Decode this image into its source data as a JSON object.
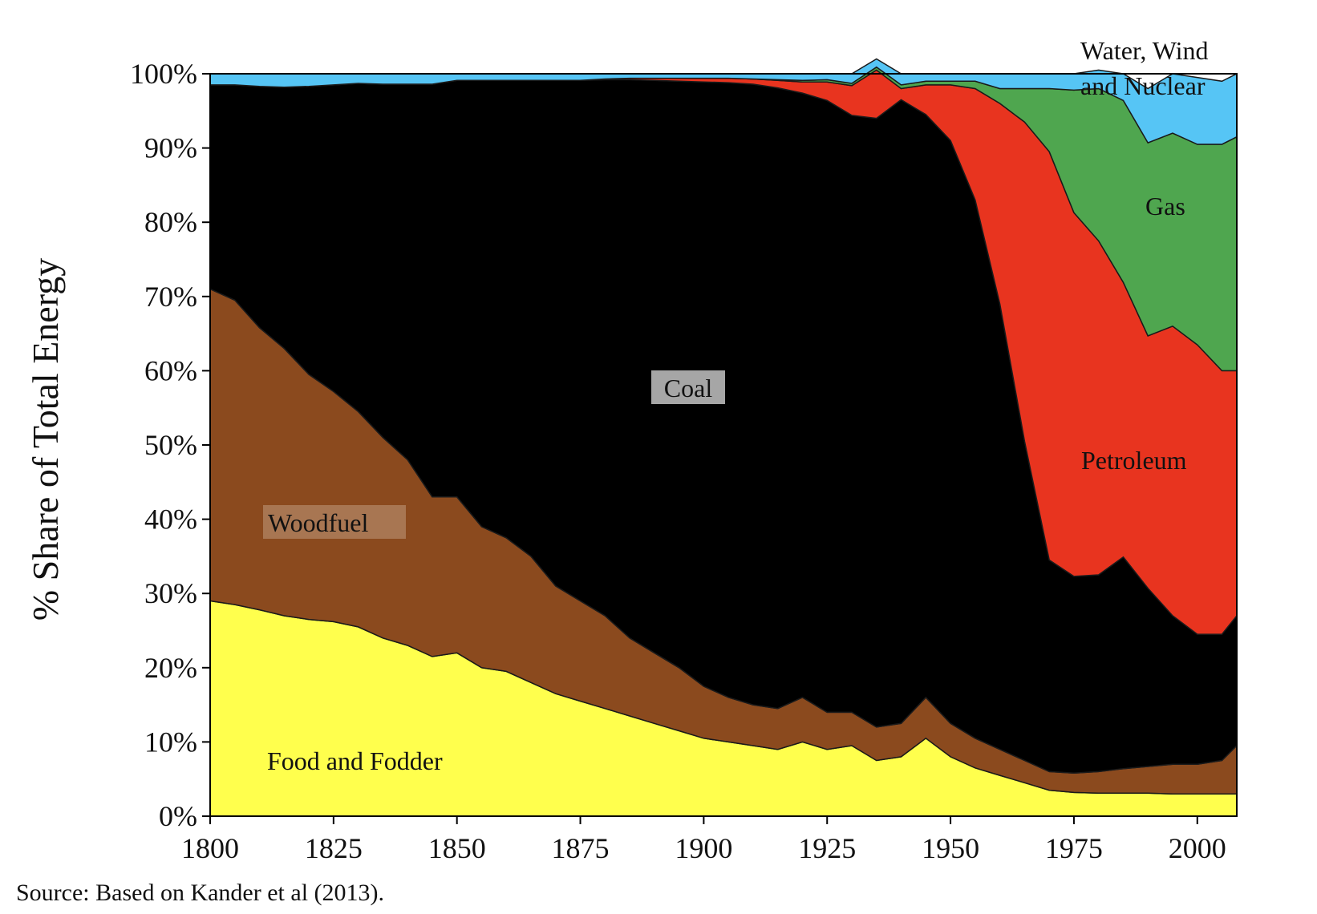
{
  "chart_data": {
    "type": "area",
    "stacked": true,
    "ylabel": "% Share of Total Energy",
    "source": "Source: Based on Kander et al (2013).",
    "xlim": [
      1800,
      2008
    ],
    "ylim": [
      0,
      100
    ],
    "x_ticks": [
      1800,
      1825,
      1850,
      1875,
      1900,
      1925,
      1950,
      1975,
      2000
    ],
    "y_ticks": [
      "0%",
      "10%",
      "20%",
      "30%",
      "40%",
      "50%",
      "60%",
      "70%",
      "80%",
      "90%",
      "100%"
    ],
    "x": [
      1800,
      1805,
      1810,
      1815,
      1820,
      1825,
      1830,
      1835,
      1840,
      1845,
      1850,
      1855,
      1860,
      1865,
      1870,
      1875,
      1880,
      1885,
      1890,
      1895,
      1900,
      1905,
      1910,
      1915,
      1920,
      1925,
      1930,
      1935,
      1940,
      1945,
      1950,
      1955,
      1960,
      1965,
      1970,
      1975,
      1980,
      1985,
      1990,
      1995,
      2000,
      2005,
      2008
    ],
    "series": [
      {
        "name": "Food and Fodder",
        "color": "#ffff4d",
        "values": [
          29,
          28.5,
          27.8,
          27,
          26.5,
          26.2,
          25.5,
          24,
          23,
          21.5,
          22,
          20,
          19.5,
          18,
          16.5,
          15.5,
          14.5,
          13.5,
          12.5,
          11.5,
          10.5,
          10,
          9.5,
          9,
          10,
          9,
          9.5,
          7.5,
          8,
          10.5,
          8,
          6.5,
          5.5,
          4.5,
          3.5,
          3.2,
          3.1,
          3.1,
          3.1,
          3,
          3,
          3,
          3
        ]
      },
      {
        "name": "Woodfuel",
        "color": "#8b4a1e",
        "values": [
          42,
          41,
          38,
          36,
          33,
          31,
          29,
          27,
          25,
          21.5,
          21,
          19,
          18,
          17,
          14.5,
          13.5,
          12.5,
          10.5,
          9.5,
          8.5,
          7,
          6,
          5.5,
          5.5,
          6,
          5,
          4.5,
          4.5,
          4.5,
          5.5,
          4.5,
          4,
          3.5,
          3,
          2.5,
          2.6,
          2.9,
          3.3,
          3.6,
          4,
          4,
          4.5,
          6.5
        ]
      },
      {
        "name": "Coal",
        "color": "#000000",
        "values": [
          27.5,
          29,
          32.5,
          35.2,
          38.8,
          41.3,
          44.2,
          47.6,
          50.6,
          55.6,
          56.1,
          60.1,
          61.6,
          64.1,
          68.1,
          70.1,
          72.2,
          75.2,
          77.1,
          79,
          81.4,
          82.8,
          83.6,
          83.6,
          81.4,
          82.4,
          80.4,
          82,
          84,
          78.5,
          78.5,
          72.5,
          60,
          43,
          28.5,
          26.5,
          26.5,
          28.5,
          24,
          20,
          17.5,
          17,
          17.5
        ]
      },
      {
        "name": "Petroleum",
        "color": "#e8341f",
        "values": [
          0,
          0,
          0,
          0,
          0,
          0,
          0,
          0,
          0,
          0,
          0,
          0,
          0,
          0,
          0,
          0,
          0.1,
          0.2,
          0.3,
          0.4,
          0.5,
          0.6,
          0.7,
          1,
          1.5,
          2.5,
          4,
          6.5,
          1.5,
          4,
          7.5,
          15,
          27,
          43,
          55,
          49,
          45,
          37,
          34,
          39,
          39,
          35.5,
          33
        ]
      },
      {
        "name": "Gas",
        "color": "#4fa64f",
        "values": [
          0,
          0,
          0,
          0,
          0,
          0,
          0,
          0,
          0,
          0,
          0,
          0,
          0,
          0,
          0,
          0,
          0,
          0,
          0,
          0,
          0,
          0,
          0,
          0.1,
          0.2,
          0.3,
          0.3,
          0.4,
          0.5,
          0.5,
          0.5,
          1,
          2,
          4.5,
          8.5,
          16.5,
          20.5,
          24.5,
          26,
          26,
          27,
          30.5,
          31.5
        ]
      },
      {
        "name": "Water, Wind and Nuclear",
        "color": "#56c5f5",
        "values": [
          1.5,
          1.5,
          1.7,
          1.8,
          1.7,
          1.5,
          1.3,
          1.4,
          1.4,
          1.4,
          0.9,
          0.9,
          0.9,
          0.9,
          0.9,
          0.9,
          0.7,
          0.6,
          0.6,
          0.6,
          0.6,
          0.6,
          0.7,
          0.8,
          0.9,
          0.8,
          1.3,
          1.1,
          1.5,
          1,
          1,
          1,
          2,
          2,
          2,
          2.2,
          2.5,
          3.6,
          7.3,
          8,
          9,
          8.5,
          8.5
        ]
      }
    ],
    "band_labels": {
      "food": "Food and Fodder",
      "wood": "Woodfuel",
      "coal": "Coal",
      "petroleum": "Petroleum",
      "gas": "Gas",
      "renew_line1": "Water, Wind",
      "renew_line2": "and Nuclear"
    }
  }
}
